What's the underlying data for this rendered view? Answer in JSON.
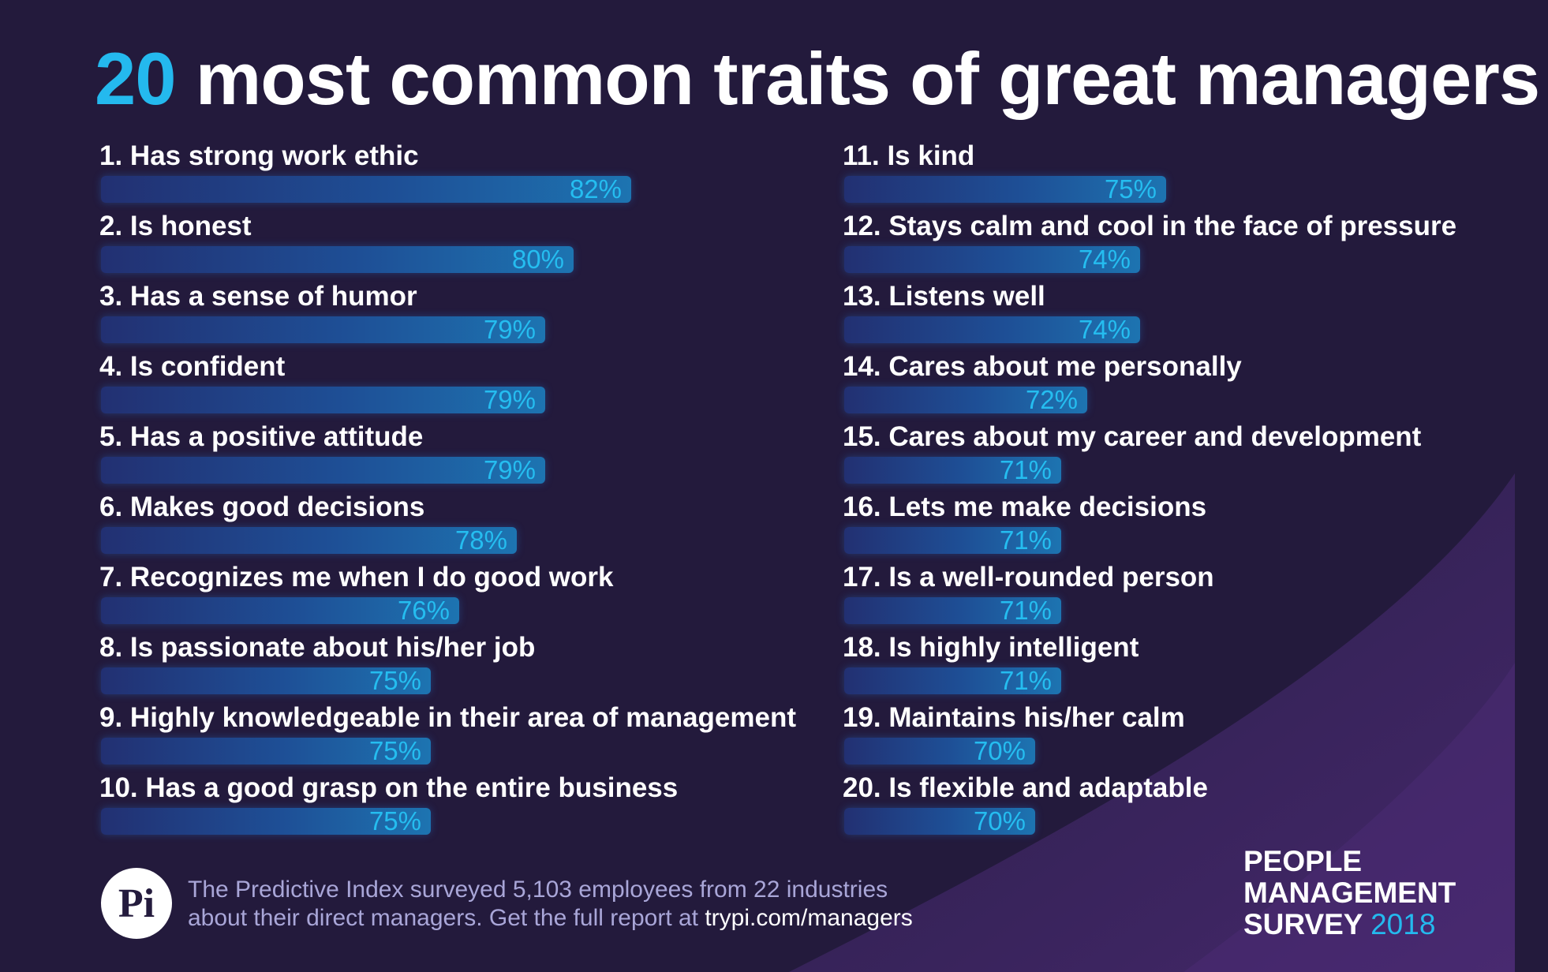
{
  "title": {
    "highlight": "20",
    "rest": "most common traits of great managers"
  },
  "chart_data": {
    "type": "bar",
    "orientation": "horizontal",
    "title": "20 most common traits of great managers",
    "categories": [
      "1. Has strong work ethic",
      "2. Is honest",
      "3. Has a sense of humor",
      "4. Is confident",
      "5. Has a positive attitude",
      "6. Makes good decisions",
      "7. Recognizes me when I do good work",
      "8. Is passionate about his/her job",
      "9. Highly knowledgeable in their area of management",
      "10. Has a good grasp on the entire business",
      "11. Is kind",
      "12. Stays calm and cool in the face of pressure",
      "13. Listens well",
      "14. Cares about me personally",
      "15. Cares about my career and development",
      "16. Lets me make decisions",
      "17. Is a well-rounded person",
      "18. Is highly intelligent",
      "19. Maintains his/her calm",
      "20. Is flexible and adaptable"
    ],
    "values": [
      82,
      80,
      79,
      79,
      79,
      78,
      76,
      75,
      75,
      75,
      75,
      74,
      74,
      72,
      71,
      71,
      71,
      71,
      70,
      70
    ],
    "value_labels": [
      "82%",
      "80%",
      "79%",
      "79%",
      "79%",
      "78%",
      "76%",
      "75%",
      "75%",
      "75%",
      "75%",
      "74%",
      "74%",
      "72%",
      "71%",
      "71%",
      "71%",
      "71%",
      "70%",
      "70%"
    ],
    "unit": "%",
    "xlim": [
      0,
      100
    ],
    "grid": false,
    "legend": "none",
    "layout": "two columns of ten"
  },
  "footer": {
    "logo_text": "Pi",
    "line1": "The Predictive Index surveyed 5,103 employees from 22 industries",
    "line2_prefix": "about their direct managers. Get the full report at ",
    "link": "trypi.com/managers"
  },
  "survey": {
    "line1": "PEOPLE",
    "line2": "MANAGEMENT",
    "line3_prefix": "SURVEY",
    "year": "2018"
  },
  "colors": {
    "background": "#231a3c",
    "accent": "#24b9ee",
    "bar": "#1e4f96",
    "footer_text": "#a9a6d8"
  }
}
